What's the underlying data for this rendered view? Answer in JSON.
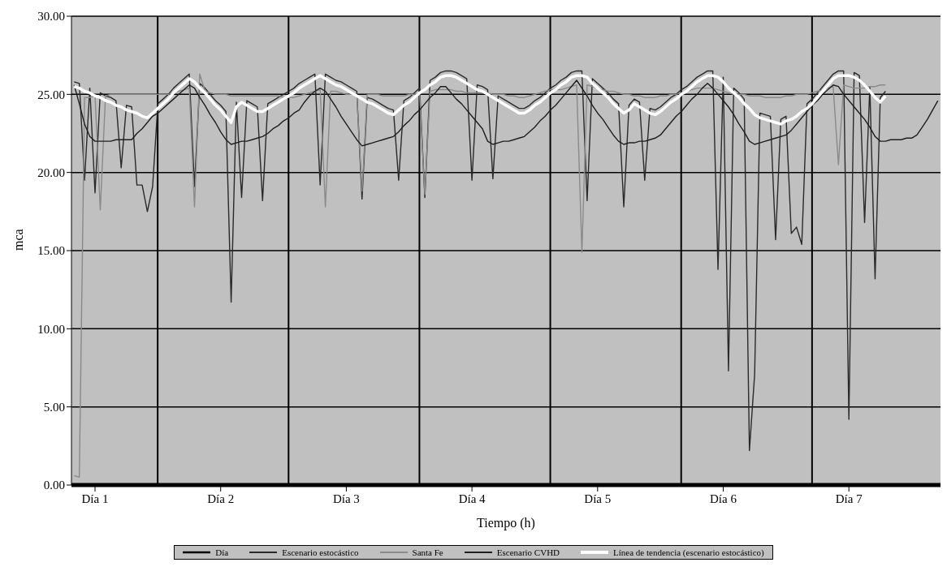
{
  "chart_data": {
    "type": "line",
    "xlabel": "Tiempo  (h)",
    "ylabel": "mca",
    "categories": [
      null,
      null,
      null,
      null,
      "Día 1",
      null,
      null,
      null,
      null,
      null,
      null,
      null,
      null,
      null,
      null,
      null,
      null,
      null,
      null,
      null,
      null,
      null,
      null,
      null,
      null,
      null,
      null,
      null,
      "Día 2",
      null,
      null,
      null,
      null,
      null,
      null,
      null,
      null,
      null,
      null,
      null,
      null,
      null,
      null,
      null,
      null,
      null,
      null,
      null,
      null,
      null,
      null,
      null,
      "Día 3",
      null,
      null,
      null,
      null,
      null,
      null,
      null,
      null,
      null,
      null,
      null,
      null,
      null,
      null,
      null,
      null,
      null,
      null,
      null,
      null,
      null,
      null,
      null,
      "Día 4",
      null,
      null,
      null,
      null,
      null,
      null,
      null,
      null,
      null,
      null,
      null,
      null,
      null,
      null,
      null,
      null,
      null,
      null,
      null,
      null,
      null,
      null,
      null,
      "Día 5",
      null,
      null,
      null,
      null,
      null,
      null,
      null,
      null,
      null,
      null,
      null,
      null,
      null,
      null,
      null,
      null,
      null,
      null,
      null,
      null,
      null,
      null,
      null,
      "Día 6",
      null,
      null,
      null,
      null,
      null,
      null,
      null,
      null,
      null,
      null,
      null,
      null,
      null,
      null,
      null,
      null,
      null,
      null,
      null,
      null,
      null,
      null,
      null,
      "Día 7",
      null,
      null,
      null,
      null,
      null,
      null,
      null,
      null,
      null,
      null,
      null,
      null,
      null,
      null,
      null,
      null,
      null
    ],
    "ylim": [
      0,
      30
    ],
    "yticks": [
      {
        "value": 0,
        "label": "0.00"
      },
      {
        "value": 5,
        "label": "5.00"
      },
      {
        "value": 10,
        "label": "10.00"
      },
      {
        "value": 15,
        "label": "15.00"
      },
      {
        "value": 20,
        "label": "20.00"
      },
      {
        "value": 25,
        "label": "25.00"
      },
      {
        "value": 30,
        "label": "30.00"
      }
    ],
    "grid": "y",
    "legend": "bottom",
    "marker": "none",
    "line_style": "solid",
    "series": [
      {
        "name": "Día",
        "type": "bar",
        "color": "#000000",
        "values": [
          null,
          null,
          null,
          null,
          null,
          null,
          null,
          null,
          null,
          null,
          null,
          null,
          null,
          null,
          null,
          null,
          30,
          null,
          null,
          null,
          null,
          null,
          null,
          null,
          null,
          null,
          null,
          null,
          null,
          null,
          null,
          null,
          null,
          null,
          null,
          null,
          null,
          null,
          null,
          null,
          null,
          30,
          null,
          null,
          null,
          null,
          null,
          null,
          null,
          null,
          null,
          null,
          null,
          null,
          null,
          null,
          null,
          null,
          null,
          null,
          null,
          null,
          null,
          null,
          null,
          null,
          30,
          null,
          null,
          null,
          null,
          null,
          null,
          null,
          null,
          null,
          null,
          null,
          null,
          null,
          null,
          null,
          null,
          null,
          null,
          null,
          null,
          null,
          null,
          null,
          null,
          30,
          null,
          null,
          null,
          null,
          null,
          null,
          null,
          null,
          null,
          null,
          null,
          null,
          null,
          null,
          null,
          null,
          null,
          null,
          null,
          null,
          null,
          null,
          null,
          null,
          30,
          null,
          null,
          null,
          null,
          null,
          null,
          null,
          null,
          null,
          null,
          null,
          null,
          null,
          null,
          null,
          null,
          null,
          null,
          null,
          null,
          null,
          null,
          null,
          null,
          30,
          null,
          null,
          null,
          null,
          null,
          null,
          null,
          null,
          null,
          null,
          null,
          null,
          null,
          null,
          null,
          null,
          null,
          null,
          null,
          null,
          null,
          null,
          null,
          null
        ]
      },
      {
        "name": "Escenario estocástico",
        "color": "#2a2a2a",
        "values": [
          25.8,
          25.7,
          19.5,
          25.4,
          18.7,
          25.1,
          24.9,
          24.8,
          24.6,
          20.3,
          24.3,
          24.2,
          19.2,
          19.2,
          17.5,
          19.1,
          24.4,
          24.7,
          25.0,
          25.4,
          25.7,
          26.0,
          26.3,
          19.1,
          25.7,
          25.4,
          25.0,
          24.6,
          24.3,
          23.9,
          11.7,
          24.5,
          18.4,
          24.6,
          24.4,
          24.2,
          18.2,
          24.4,
          24.6,
          24.8,
          25.0,
          25.2,
          25.4,
          25.7,
          25.9,
          26.1,
          26.3,
          19.2,
          26.3,
          26.1,
          25.9,
          25.8,
          25.6,
          25.4,
          25.2,
          18.3,
          24.8,
          24.7,
          24.5,
          24.3,
          24.1,
          24.0,
          19.5,
          24.6,
          24.8,
          25.1,
          25.4,
          18.4,
          25.9,
          26.1,
          26.4,
          26.5,
          26.5,
          26.4,
          26.2,
          26.0,
          19.5,
          25.6,
          25.5,
          25.3,
          19.6,
          24.9,
          24.7,
          24.5,
          24.3,
          24.1,
          24.1,
          24.3,
          24.6,
          24.8,
          25.1,
          25.4,
          25.6,
          25.9,
          26.1,
          26.4,
          26.5,
          26.5,
          18.2,
          26.0,
          25.7,
          25.4,
          25.1,
          24.7,
          24.4,
          17.8,
          24.3,
          24.7,
          24.5,
          19.5,
          24.1,
          24.0,
          24.2,
          24.5,
          24.8,
          25.0,
          25.3,
          25.5,
          25.8,
          26.1,
          26.3,
          26.5,
          26.5,
          13.8,
          26.1,
          7.3,
          25.4,
          25.1,
          24.7,
          2.2,
          7.1,
          23.8,
          23.7,
          23.6,
          15.7,
          23.4,
          23.6,
          16.1,
          16.5,
          15.4,
          24.4,
          24.7,
          25.1,
          25.5,
          25.9,
          26.3,
          26.5,
          26.5,
          4.2,
          26.4,
          26.2,
          16.8,
          25.5,
          13.2,
          24.8,
          25.2,
          null,
          null,
          null,
          null,
          null,
          null,
          null,
          null,
          null,
          null
        ]
      },
      {
        "name": "Santa Fe",
        "color": "#8a8a8a",
        "values": [
          0.6,
          0.5,
          24.8,
          24.8,
          24.9,
          17.6,
          24.9,
          25.0,
          25.0,
          25.0,
          25.0,
          25.0,
          25.0,
          25.0,
          25.0,
          25.0,
          25.0,
          25.0,
          25.0,
          25.1,
          25.2,
          25.3,
          25.4,
          17.8,
          26.3,
          25.2,
          25.1,
          25.0,
          25.0,
          25.0,
          24.9,
          24.9,
          24.9,
          24.9,
          24.9,
          24.9,
          24.9,
          24.9,
          24.9,
          24.9,
          24.8,
          24.8,
          24.8,
          24.9,
          25.0,
          25.1,
          25.2,
          25.3,
          17.8,
          25.2,
          25.2,
          25.1,
          25.0,
          25.0,
          25.0,
          18.8,
          25.0,
          25.0,
          25.0,
          24.9,
          24.9,
          24.9,
          24.9,
          24.9,
          25.0,
          25.0,
          25.1,
          18.6,
          25.2,
          25.3,
          25.3,
          25.3,
          25.3,
          25.2,
          25.2,
          25.1,
          25.1,
          25.1,
          25.1,
          25.1,
          25.0,
          25.0,
          25.0,
          24.9,
          24.9,
          24.8,
          24.8,
          24.9,
          25.0,
          25.1,
          25.2,
          25.3,
          25.3,
          25.3,
          25.4,
          25.5,
          25.6,
          14.9,
          25.6,
          25.5,
          25.4,
          25.3,
          25.2,
          25.2,
          25.1,
          25.0,
          25.0,
          24.9,
          24.9,
          24.8,
          24.8,
          24.8,
          24.9,
          24.9,
          25.0,
          25.0,
          25.1,
          25.2,
          25.3,
          25.4,
          25.4,
          25.4,
          25.4,
          25.3,
          25.2,
          25.1,
          25.0,
          25.0,
          25.0,
          24.9,
          24.9,
          24.9,
          24.8,
          24.8,
          24.8,
          24.8,
          24.9,
          24.9,
          25.0,
          25.0,
          25.0,
          25.1,
          25.2,
          25.3,
          25.4,
          25.5,
          20.5,
          25.6,
          25.5,
          25.4,
          25.4,
          25.4,
          25.5,
          25.5,
          25.6,
          25.6,
          null,
          null,
          null,
          null,
          null,
          null,
          null,
          null,
          null,
          null
        ]
      },
      {
        "name": "Escenario CVHD",
        "color": "#1e1e1e",
        "values": [
          25.6,
          24.4,
          23.1,
          22.3,
          22.0,
          22.0,
          22.0,
          22.0,
          22.1,
          22.1,
          22.1,
          22.1,
          22.5,
          22.8,
          23.2,
          23.6,
          23.8,
          24.1,
          24.4,
          24.7,
          25.0,
          25.3,
          25.6,
          25.4,
          24.8,
          24.3,
          23.7,
          23.2,
          22.6,
          22.1,
          21.8,
          21.9,
          22.0,
          22.0,
          22.1,
          22.2,
          22.3,
          22.5,
          22.8,
          23.0,
          23.3,
          23.5,
          23.8,
          24.0,
          24.5,
          24.9,
          25.2,
          25.4,
          25.2,
          24.7,
          24.2,
          23.6,
          23.1,
          22.6,
          22.1,
          21.7,
          21.8,
          21.9,
          22.0,
          22.1,
          22.2,
          22.3,
          22.6,
          23.0,
          23.3,
          23.7,
          24.0,
          24.4,
          24.8,
          25.1,
          25.5,
          25.5,
          25.1,
          24.7,
          24.4,
          24.0,
          23.6,
          23.2,
          22.8,
          22.0,
          21.8,
          21.9,
          22.0,
          22.0,
          22.1,
          22.2,
          22.3,
          22.6,
          22.9,
          23.3,
          23.6,
          24.0,
          24.3,
          24.7,
          25.1,
          25.5,
          25.9,
          25.4,
          24.9,
          24.3,
          23.8,
          23.4,
          22.9,
          22.4,
          22.0,
          21.8,
          21.9,
          21.9,
          22.0,
          22.0,
          22.1,
          22.2,
          22.4,
          22.8,
          23.2,
          23.6,
          23.9,
          24.3,
          24.7,
          25.0,
          25.4,
          25.7,
          25.4,
          25.0,
          24.6,
          24.2,
          23.7,
          23.1,
          22.6,
          22.0,
          21.8,
          21.9,
          22.0,
          22.1,
          22.2,
          22.3,
          22.4,
          22.7,
          23.1,
          23.5,
          23.9,
          24.3,
          24.6,
          25.0,
          25.3,
          25.6,
          25.5,
          25.0,
          24.6,
          24.2,
          23.8,
          23.4,
          22.9,
          22.3,
          22.0,
          22.0,
          22.1,
          22.1,
          22.1,
          22.2,
          22.2,
          22.4,
          22.9,
          23.4,
          24.0,
          24.6
        ]
      },
      {
        "name": "Línea de tendencia (escenario estocástico)",
        "color": "#ffffff",
        "values": [
          25.5,
          25.4,
          25.2,
          25.1,
          24.9,
          24.8,
          24.6,
          24.5,
          24.3,
          24.2,
          24.0,
          23.9,
          23.8,
          23.6,
          23.5,
          23.8,
          24.1,
          24.4,
          24.7,
          25.1,
          25.4,
          25.7,
          26.0,
          25.8,
          25.4,
          25.1,
          24.7,
          24.3,
          24.0,
          23.6,
          23.2,
          24.2,
          24.5,
          24.3,
          24.1,
          23.9,
          23.9,
          24.1,
          24.3,
          24.5,
          24.7,
          24.9,
          25.1,
          25.4,
          25.6,
          25.8,
          26.0,
          26.2,
          26.0,
          25.8,
          25.6,
          25.5,
          25.3,
          25.1,
          24.9,
          24.7,
          24.5,
          24.4,
          24.2,
          24.0,
          23.8,
          23.7,
          24.0,
          24.3,
          24.5,
          24.8,
          25.1,
          25.3,
          25.6,
          25.8,
          26.1,
          26.2,
          26.2,
          26.1,
          25.9,
          25.7,
          25.5,
          25.3,
          25.2,
          25.0,
          24.8,
          24.6,
          24.4,
          24.2,
          24.0,
          23.8,
          23.8,
          24.0,
          24.3,
          24.5,
          24.8,
          25.1,
          25.3,
          25.6,
          25.8,
          26.1,
          26.2,
          26.2,
          26.1,
          25.7,
          25.4,
          25.1,
          24.8,
          24.4,
          24.1,
          23.8,
          24.0,
          24.4,
          24.2,
          24.0,
          23.8,
          23.7,
          23.9,
          24.2,
          24.5,
          24.7,
          25.0,
          25.2,
          25.5,
          25.8,
          26.0,
          26.2,
          26.2,
          26.1,
          25.8,
          25.4,
          25.1,
          24.8,
          24.4,
          24.1,
          23.7,
          23.5,
          23.4,
          23.3,
          23.2,
          23.1,
          23.3,
          23.4,
          23.6,
          23.9,
          24.1,
          24.4,
          24.8,
          25.2,
          25.6,
          26.0,
          26.2,
          26.2,
          26.2,
          26.1,
          25.9,
          25.6,
          25.2,
          24.8,
          24.5,
          24.9,
          null,
          null,
          null,
          null,
          null,
          null,
          null,
          null,
          null,
          null
        ]
      }
    ]
  }
}
